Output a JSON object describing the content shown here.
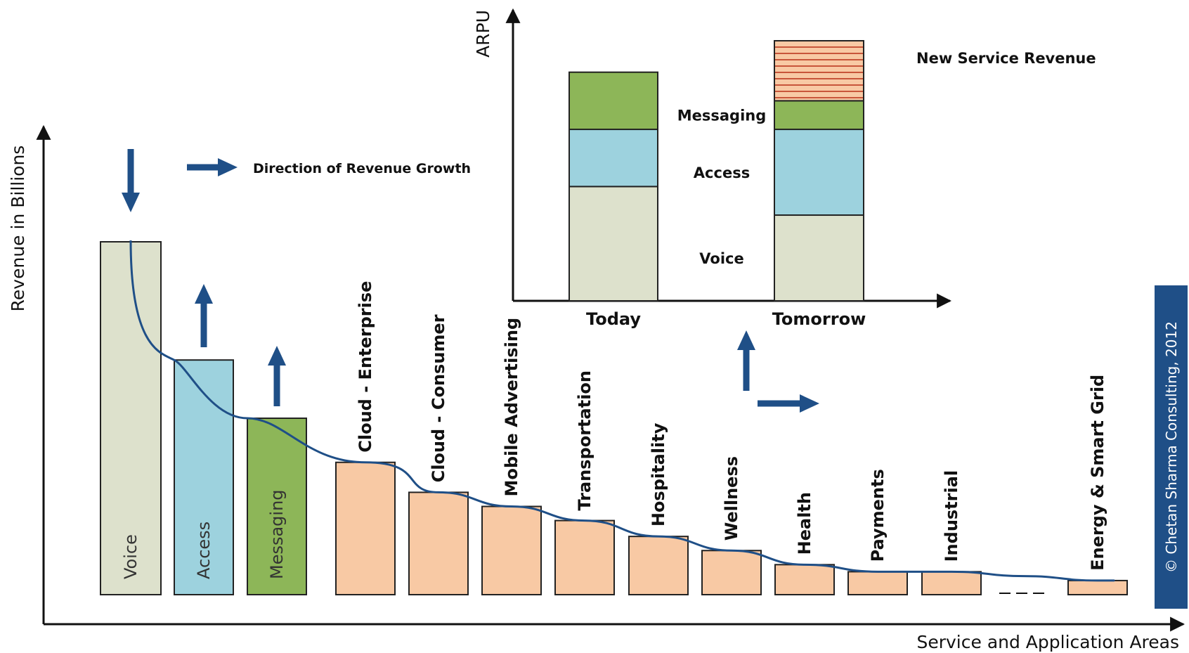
{
  "chart_data": [
    {
      "type": "bar",
      "xlabel": "Service and Application Areas",
      "ylabel": "Revenue in Billions",
      "categories": [
        "Voice",
        "Access",
        "Messaging",
        "Cloud - Enterprise",
        "Cloud - Consumer",
        "Mobile Advertising",
        "Transportation",
        "Hospitality",
        "Wellness",
        "Health",
        "Payments",
        "Industrial",
        "",
        "Energy & Smart Grid"
      ],
      "values": [
        100,
        66.5,
        50,
        37.5,
        29,
        25,
        21,
        16.5,
        12.5,
        8.5,
        6.5,
        6.5,
        0,
        4
      ],
      "ylim": [
        0,
        130
      ],
      "colors": [
        "#dde1cc",
        "#9dd2de",
        "#8db658",
        "#f8c9a4",
        "#f8c9a4",
        "#f8c9a4",
        "#f8c9a4",
        "#f8c9a4",
        "#f8c9a4",
        "#f8c9a4",
        "#f8c9a4",
        "#f8c9a4",
        "#f8c9a4",
        "#f8c9a4"
      ],
      "label_inside": [
        true,
        true,
        true,
        false,
        false,
        false,
        false,
        false,
        false,
        false,
        false,
        false,
        false,
        false
      ],
      "trend": "long-tail decay curve from Voice to Energy & Smart Grid",
      "growth_arrows": [
        "Voice: down",
        "Access: up",
        "Messaging: up"
      ],
      "legend_note": "Direction of Revenue Growth",
      "grid": false
    },
    {
      "type": "bar",
      "stacked": true,
      "ylabel": "ARPU",
      "categories": [
        "Today",
        "Tomorrow"
      ],
      "series": [
        {
          "name": "Voice",
          "values": [
            40,
            30
          ]
        },
        {
          "name": "Access",
          "values": [
            20,
            30
          ]
        },
        {
          "name": "Messaging",
          "values": [
            20,
            10
          ]
        },
        {
          "name": "New Service Revenue",
          "values": [
            0,
            21
          ]
        }
      ],
      "colors": [
        "#dde1cc",
        "#9dd2de",
        "#8db658",
        "#f8c9a4"
      ],
      "ylim": [
        0,
        100
      ],
      "grid": false
    }
  ],
  "copyright": "© Chetan Sharma Consulting, 2012",
  "colors": {
    "arrow": "#1f4f87",
    "curve": "#1f4f87",
    "axis": "#111111",
    "stripe": "#c8553a",
    "badge": "#1f4f87"
  }
}
